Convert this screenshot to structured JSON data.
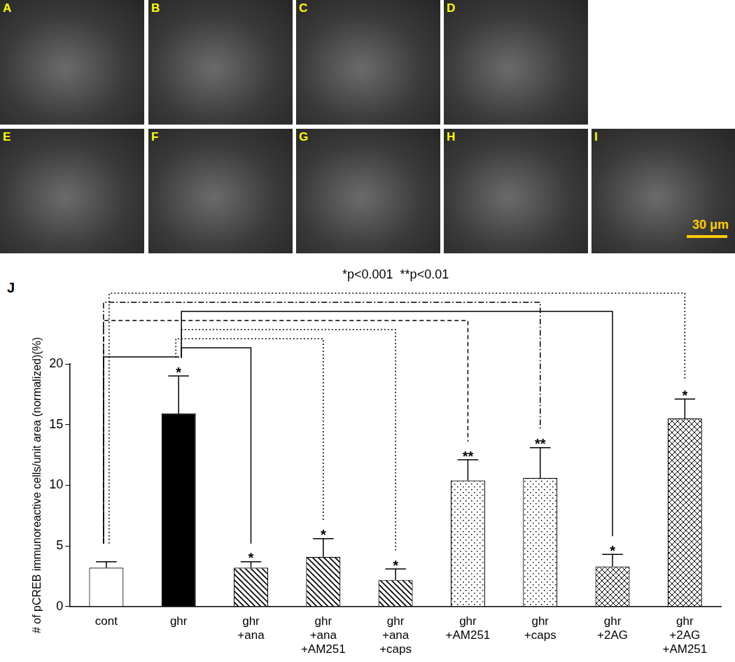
{
  "panels": [
    "A",
    "B",
    "C",
    "D",
    "E",
    "F",
    "G",
    "H",
    "I"
  ],
  "scale_bar": "30 μm",
  "panel_label": "J",
  "chart_data": {
    "type": "bar",
    "y_label": "# of pCREB immunoreactive cells/unit area (normalized)(%)",
    "categories": [
      "cont",
      "ghr",
      "ghr +ana",
      "ghr +ana +AM251",
      "ghr +ana +caps",
      "ghr +AM251",
      "ghr +caps",
      "ghr +2AG",
      "ghr +2AG +AM251"
    ],
    "values": [
      3.2,
      15.9,
      3.2,
      4.1,
      2.2,
      10.4,
      10.6,
      3.3,
      15.5
    ],
    "errors": [
      0.5,
      3.1,
      0.5,
      1.5,
      0.9,
      1.7,
      2.5,
      1.0,
      1.6
    ],
    "colors": [
      "#ffffff",
      "#000000",
      "#ffffff",
      "#ffffff",
      "#ffffff",
      "#ffffff",
      "#ffffff",
      "#ffffff",
      "#ffffff"
    ],
    "significance": [
      null,
      "*",
      "*",
      "*",
      "*",
      "**",
      "**",
      "*",
      "*"
    ],
    "comparisons": [
      {
        "from": "cont",
        "to": "ghr",
        "line_style": "solid"
      },
      {
        "from": "ghr",
        "to": "ghr +ana",
        "line_style": "solid"
      },
      {
        "from": "ghr",
        "to": "ghr +2AG",
        "line_style": "solid"
      },
      {
        "from": "ghr",
        "to": "ghr +ana +AM251",
        "line_style": "dotted"
      },
      {
        "from": "ghr",
        "to": "ghr +ana +caps",
        "line_style": "dotted"
      },
      {
        "from": "cont",
        "to": "ghr +AM251",
        "line_style": "dashed"
      },
      {
        "from": "cont",
        "to": "ghr +caps",
        "line_style": "dashdot"
      },
      {
        "from": "cont",
        "to": "ghr +2AG +AM251",
        "line_style": "dotted"
      }
    ],
    "annotations": [
      "*p<0.001  **p<0.01"
    ],
    "ylim": [
      0,
      20
    ],
    "yticks": [
      0,
      5,
      10,
      15,
      20
    ],
    "grid": false
  }
}
